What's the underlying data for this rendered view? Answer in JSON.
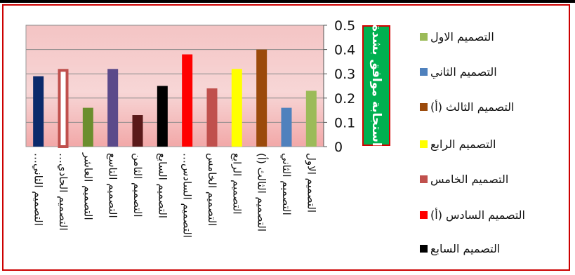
{
  "chart_data": {
    "type": "bar",
    "categories": [
      "التصميم الثاني…",
      "التصميم الحادي…",
      "التصميم العاشر",
      "التصميم التاسع",
      "التصميم الثامن",
      "التصميم السابع",
      "التصميم السادس…",
      "التصميم الخامس",
      "التصميم الرابع",
      "التصميم الثالث (أ)",
      "التصميم الثاني",
      "التصميم الاول"
    ],
    "values": [
      0.29,
      0.32,
      0.16,
      0.32,
      0.13,
      0.25,
      0.38,
      0.24,
      0.32,
      0.4,
      0.16,
      0.23
    ],
    "bar_colors": [
      "#0b2a6b",
      "#ffffff",
      "#6b8e2e",
      "#5b4a8a",
      "#5b1a1a",
      "#000000",
      "#ff0000",
      "#c0504d",
      "#ffff00",
      "#9b4a0b",
      "#4f81bd",
      "#9bbb59"
    ],
    "bar_outlines": [
      "",
      "#c0504d",
      "",
      "",
      "",
      "",
      "",
      "",
      "",
      "",
      "",
      ""
    ],
    "ylim": [
      0,
      0.5
    ],
    "yticks": [
      "0",
      "0.1",
      "0.2",
      "0.3",
      "0.4",
      "0.5"
    ],
    "ylabel": "استجابة موافق بشدة",
    "grid": true,
    "legend_position": "right",
    "legend": [
      {
        "label": "التصميم الاول",
        "color": "#9bbb59"
      },
      {
        "label": "التصميم الثاني",
        "color": "#4f81bd"
      },
      {
        "label": "التصميم الثالث (أ)",
        "color": "#9b4a0b"
      },
      {
        "label": "التصميم الرابع",
        "color": "#ffff00"
      },
      {
        "label": "التصميم الخامس",
        "color": "#c0504d"
      },
      {
        "label": "التصميم السادس (أ)",
        "color": "#ff0000"
      },
      {
        "label": "التصميم السابع",
        "color": "#000000"
      }
    ]
  }
}
